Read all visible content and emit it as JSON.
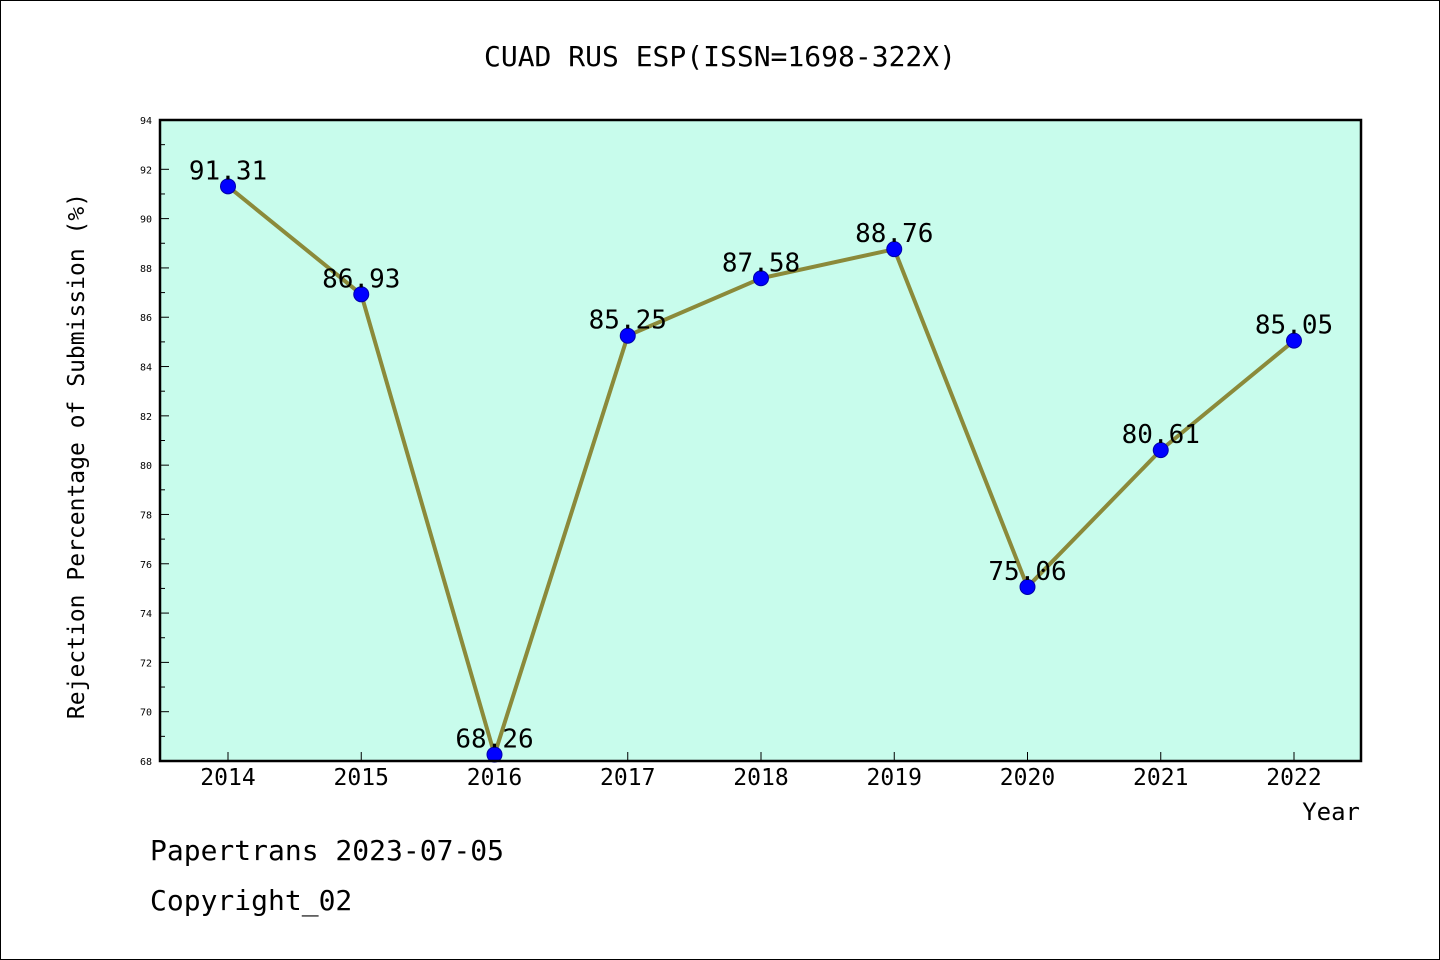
{
  "colors": {
    "plot_background": "#c8fcec",
    "line": "#8b8a3a",
    "marker": "#0000ff",
    "axis": "#000000",
    "text": "#000000"
  },
  "footer": {
    "line1": "Papertrans 2023-07-05",
    "line2": "Copyright_02"
  },
  "chart_data": {
    "type": "line",
    "title": "CUAD RUS ESP(ISSN=1698-322X)",
    "xlabel": "Year",
    "ylabel": "Rejection Percentage of Submission (%)",
    "categories": [
      "2014",
      "2015",
      "2016",
      "2017",
      "2018",
      "2019",
      "2020",
      "2021",
      "2022"
    ],
    "series": [
      {
        "values": [
          91.31,
          86.93,
          68.26,
          85.25,
          87.58,
          88.76,
          75.06,
          80.61,
          85.05
        ],
        "labels": [
          "91.31",
          "86.93",
          "68.26",
          "85.25",
          "87.58",
          "88.76",
          "75.06",
          "80.61",
          "85.05"
        ]
      }
    ],
    "ylim": [
      68,
      94
    ],
    "yticks": [
      "68",
      "70",
      "72",
      "74",
      "76",
      "78",
      "80",
      "82",
      "84",
      "86",
      "88",
      "90",
      "92",
      "94"
    ],
    "grid": false,
    "legend": "none"
  }
}
